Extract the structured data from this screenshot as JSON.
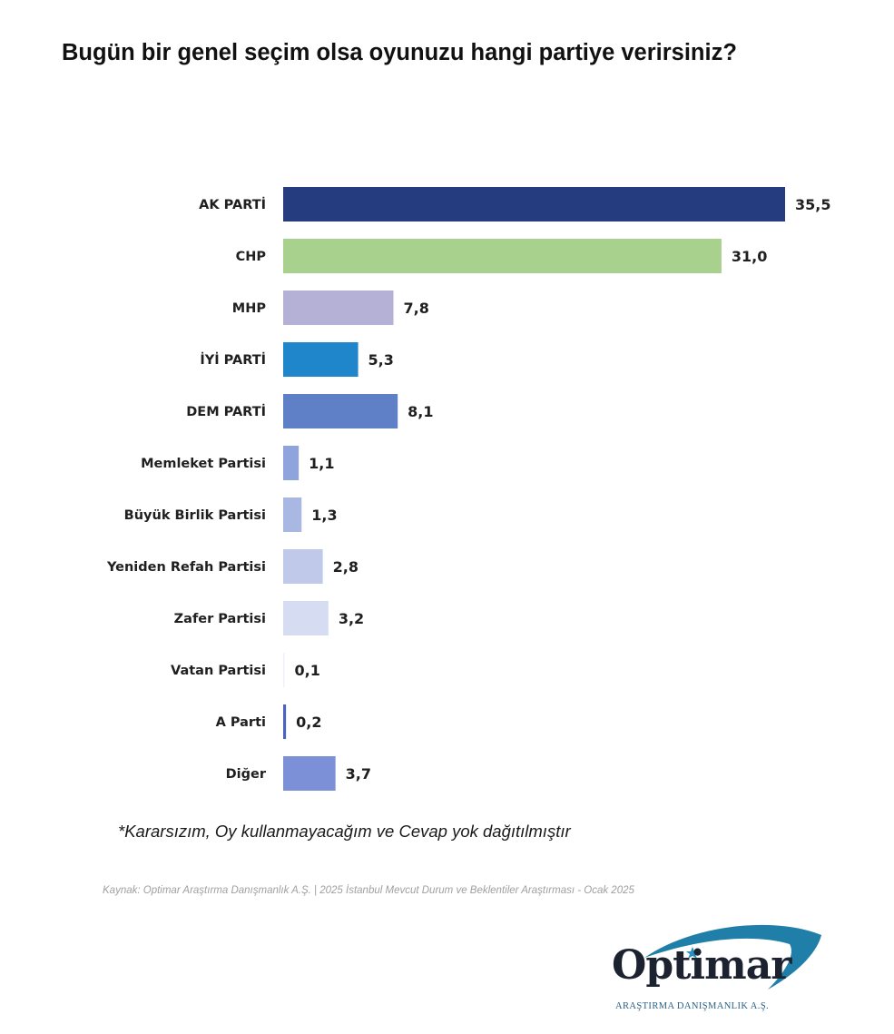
{
  "title": "Bugün bir genel seçim olsa oyunuzu hangi partiye verirsiniz?",
  "chart_data": {
    "type": "bar",
    "orientation": "horizontal",
    "title": "Bugün bir genel seçim olsa oyunuzu hangi partiye verirsiniz?",
    "xlabel": "",
    "ylabel": "",
    "grid": false,
    "legend": "none",
    "xlim": [
      0,
      35.5
    ],
    "categories": [
      "AK PARTİ",
      "CHP",
      "MHP",
      "İYİ PARTİ",
      "DEM PARTİ",
      "Memleket Partisi",
      "Büyük Birlik Partisi",
      "Yeniden Refah Partisi",
      "Zafer Partisi",
      "Vatan Partisi",
      "A Parti",
      "Diğer"
    ],
    "values": [
      35.5,
      31.0,
      7.8,
      5.3,
      8.1,
      1.1,
      1.3,
      2.8,
      3.2,
      0.1,
      0.2,
      3.7
    ],
    "value_labels": [
      "35,5",
      "31,0",
      "7,8",
      "5,3",
      "8,1",
      "1,1",
      "1,3",
      "2,8",
      "3,2",
      "0,1",
      "0,2",
      "3,7"
    ],
    "colors": [
      "#253d7f",
      "#a8d18d",
      "#b4b0d6",
      "#1f86cc",
      "#5f7fc7",
      "#8fa3dc",
      "#a9b8e3",
      "#c0c9ea",
      "#d6dcf1",
      "#eef1fa",
      "#4a63c0",
      "#7b90d6"
    ]
  },
  "footnote": "*Kararsızım, Oy kullanmayacağım ve Cevap yok dağıtılmıştır",
  "source": "Kaynak: Optimar Araştırma Danışmanlık A.Ş. | 2025 İstanbul Mevcut Durum ve Beklentiler Araştırması - Ocak 2025",
  "logo": {
    "name": "Optimar",
    "tagline": "ARAŞTIRMA DANIŞMANLIK A.Ş.",
    "colors": {
      "text": "#1d2230",
      "swoosh": "#1f7fa8",
      "star": "#2a8fc0"
    }
  }
}
